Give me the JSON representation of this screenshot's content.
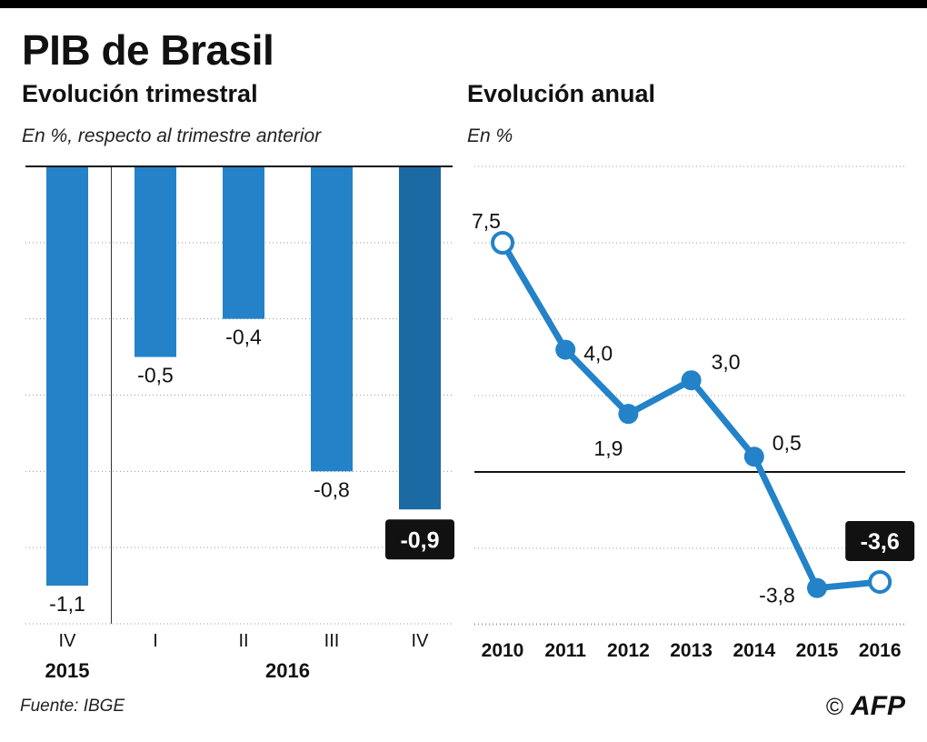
{
  "title": "PIB de Brasil",
  "source": "Fuente: IBGE",
  "logo": {
    "copyright": "©",
    "name": "AFP"
  },
  "colors": {
    "bar": "#2382c8",
    "bar_highlight": "#1c6aa3",
    "line": "#2382c8",
    "label_box": "#111111"
  },
  "chart_data": [
    {
      "type": "bar",
      "title": "Evolución trimestral",
      "ylabel": "En %, respecto al trimestre anterior",
      "categories": [
        "IV",
        "I",
        "II",
        "III",
        "IV"
      ],
      "groups": [
        {
          "label": "2015",
          "categories": [
            "IV"
          ]
        },
        {
          "label": "2016",
          "categories": [
            "I",
            "II",
            "III",
            "IV"
          ]
        }
      ],
      "values": [
        -1.1,
        -0.5,
        -0.4,
        -0.8,
        -0.9
      ],
      "value_labels": [
        "-1,1",
        "-0,5",
        "-0,4",
        "-0,8",
        "-0,9"
      ],
      "highlight_index": 4,
      "ylim": [
        -1.2,
        0
      ],
      "grid": true
    },
    {
      "type": "line",
      "title": "Evolución anual",
      "ylabel": "En %",
      "x": [
        "2010",
        "2011",
        "2012",
        "2013",
        "2014",
        "2015",
        "2016"
      ],
      "values": [
        7.5,
        4.0,
        1.9,
        3.0,
        0.5,
        -3.8,
        -3.6
      ],
      "value_labels": [
        "7,5",
        "4,0",
        "1,9",
        "3,0",
        "0,5",
        "-3,8",
        "-3,6"
      ],
      "hollow_markers": [
        0,
        6
      ],
      "highlight_index": 6,
      "ylim": [
        -5,
        10
      ],
      "grid": true
    }
  ]
}
